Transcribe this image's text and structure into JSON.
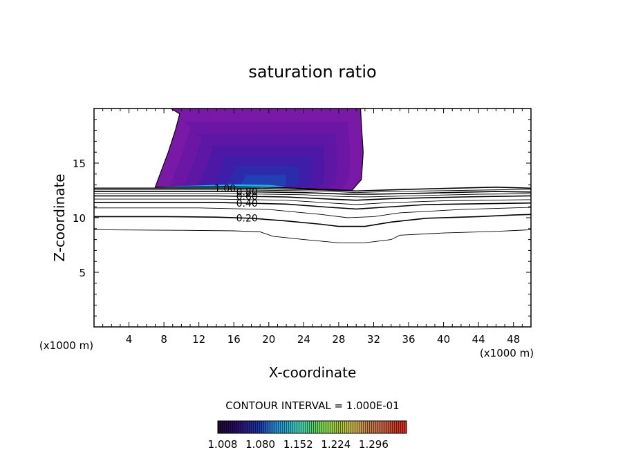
{
  "chart_data": {
    "type": "contour",
    "title": "saturation ratio",
    "xlabel": "X-coordinate",
    "ylabel": "Z-coordinate",
    "x_unit_left": "(x1000 m)",
    "x_unit_right": "(x1000 m)",
    "xlim": [
      0,
      50
    ],
    "ylim": [
      0,
      20
    ],
    "xticks": [
      4,
      8,
      12,
      16,
      20,
      24,
      28,
      32,
      36,
      40,
      44,
      48
    ],
    "yticks": [
      5,
      10,
      15
    ],
    "contour_interval_text": "CONTOUR INTERVAL = 1.000E-01",
    "contour_lines": [
      {
        "level": 0.1,
        "label": "",
        "points": [
          [
            0,
            8.9
          ],
          [
            10,
            8.85
          ],
          [
            16,
            8.8
          ],
          [
            19,
            8.7
          ],
          [
            20.5,
            8.3
          ],
          [
            24,
            8.0
          ],
          [
            28,
            7.7
          ],
          [
            31,
            7.7
          ],
          [
            34,
            8.0
          ],
          [
            35,
            8.4
          ],
          [
            40,
            8.6
          ],
          [
            46,
            8.75
          ],
          [
            50,
            8.9
          ]
        ]
      },
      {
        "level": 0.2,
        "label": "0.20",
        "points": [
          [
            0,
            10.1
          ],
          [
            8,
            10.1
          ],
          [
            14,
            10.05
          ],
          [
            18,
            9.95
          ],
          [
            22,
            9.7
          ],
          [
            26,
            9.4
          ],
          [
            28,
            9.2
          ],
          [
            31,
            9.2
          ],
          [
            34,
            9.6
          ],
          [
            38,
            9.95
          ],
          [
            44,
            10.1
          ],
          [
            48,
            10.25
          ],
          [
            50,
            10.3
          ]
        ]
      },
      {
        "level": 0.3,
        "label": "",
        "points": [
          [
            0,
            10.9
          ],
          [
            12,
            10.9
          ],
          [
            20,
            10.75
          ],
          [
            26,
            10.3
          ],
          [
            29,
            10.0
          ],
          [
            32,
            10.1
          ],
          [
            35,
            10.45
          ],
          [
            42,
            10.75
          ],
          [
            50,
            10.95
          ]
        ]
      },
      {
        "level": 0.4,
        "label": "0.40",
        "points": [
          [
            0,
            11.4
          ],
          [
            14,
            11.4
          ],
          [
            22,
            11.25
          ],
          [
            27,
            10.95
          ],
          [
            30,
            10.8
          ],
          [
            33,
            10.95
          ],
          [
            38,
            11.2
          ],
          [
            50,
            11.35
          ]
        ]
      },
      {
        "level": 0.5,
        "label": "",
        "points": [
          [
            0,
            11.7
          ],
          [
            14,
            11.7
          ],
          [
            22,
            11.6
          ],
          [
            27,
            11.35
          ],
          [
            30,
            11.2
          ],
          [
            33,
            11.35
          ],
          [
            40,
            11.55
          ],
          [
            50,
            11.65
          ]
        ]
      },
      {
        "level": 0.6,
        "label": "0.60",
        "points": [
          [
            0,
            12.0
          ],
          [
            14,
            12.0
          ],
          [
            22,
            11.9
          ],
          [
            27,
            11.7
          ],
          [
            30,
            11.6
          ],
          [
            34,
            11.75
          ],
          [
            42,
            11.9
          ],
          [
            50,
            12.0
          ]
        ]
      },
      {
        "level": 0.7,
        "label": "",
        "points": [
          [
            0,
            12.2
          ],
          [
            16,
            12.2
          ],
          [
            24,
            12.1
          ],
          [
            28,
            11.95
          ],
          [
            31,
            11.9
          ],
          [
            36,
            12.0
          ],
          [
            44,
            12.15
          ],
          [
            50,
            12.2
          ]
        ]
      },
      {
        "level": 0.8,
        "label": "0.80",
        "points": [
          [
            0,
            12.4
          ],
          [
            16,
            12.4
          ],
          [
            24,
            12.3
          ],
          [
            29,
            12.15
          ],
          [
            32,
            12.15
          ],
          [
            38,
            12.25
          ],
          [
            46,
            12.4
          ],
          [
            50,
            12.35
          ]
        ]
      },
      {
        "level": 0.9,
        "label": "",
        "points": [
          [
            0,
            12.55
          ],
          [
            16,
            12.55
          ],
          [
            26,
            12.45
          ],
          [
            30,
            12.3
          ],
          [
            34,
            12.4
          ],
          [
            42,
            12.5
          ],
          [
            50,
            12.6
          ]
        ]
      },
      {
        "level": 1.0,
        "label": "1.00",
        "points": [
          [
            0,
            12.7
          ],
          [
            8,
            12.7
          ],
          [
            16,
            12.7
          ],
          [
            24,
            12.6
          ],
          [
            30,
            12.45
          ],
          [
            36,
            12.6
          ],
          [
            46,
            12.8
          ],
          [
            50,
            12.7
          ]
        ]
      }
    ],
    "supersaturated_region": {
      "levels_from_outer_to_inner": [
        1.008,
        1.03,
        1.05,
        1.07,
        1.09,
        1.12,
        1.15
      ],
      "outer_boundary": [
        [
          8.8,
          20
        ],
        [
          9.8,
          19.5
        ],
        [
          9.3,
          18
        ],
        [
          8.5,
          16
        ],
        [
          7.7,
          14.3
        ],
        [
          7.0,
          12.8
        ],
        [
          15,
          12.85
        ],
        [
          22,
          12.75
        ],
        [
          29.5,
          12.5
        ],
        [
          30.6,
          13.5
        ],
        [
          30.8,
          16
        ],
        [
          30.6,
          18.5
        ],
        [
          30.5,
          20
        ]
      ],
      "core_level": 1.15
    },
    "colorbar": {
      "min": 1.008,
      "max": 1.368,
      "tick_labels": [
        "1.008",
        "1.080",
        "1.152",
        "1.224",
        "1.296"
      ],
      "colors": [
        "#1c0b2a",
        "#2a0d6e",
        "#1e3aa8",
        "#1fa0d8",
        "#3fd0a8",
        "#79d24a",
        "#b8c840",
        "#c89050",
        "#c05840",
        "#d82818"
      ]
    }
  }
}
